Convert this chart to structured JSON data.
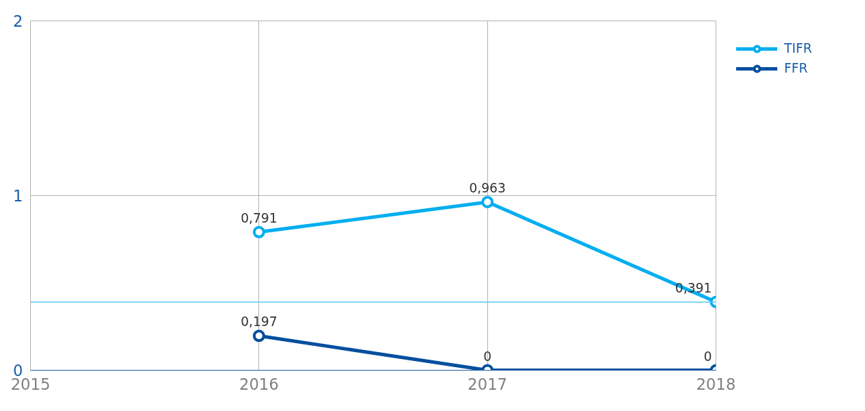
{
  "chart_data": {
    "type": "line",
    "x": [
      2016,
      2017,
      2018
    ],
    "xlim": [
      2015,
      2018
    ],
    "xticks": [
      2015,
      2016,
      2017,
      2018
    ],
    "ylim": [
      0,
      2
    ],
    "yticks": [
      0,
      1,
      2
    ],
    "grid": true,
    "legend": "right",
    "marker": "circle",
    "line_style": "solid",
    "series": [
      {
        "name": "TIFR",
        "color": "#00aeef",
        "values": [
          0.791,
          0.963,
          0.391
        ],
        "value_labels": [
          "0,791",
          "0,963",
          "0,391"
        ]
      },
      {
        "name": "FFR",
        "color": "#004f9f",
        "values": [
          0.197,
          0,
          0
        ],
        "value_labels": [
          "0,197",
          "0",
          "0"
        ]
      }
    ],
    "ref_lines": [
      {
        "axis": "y",
        "value": 0.39,
        "color": "#5bc5f2"
      }
    ]
  }
}
